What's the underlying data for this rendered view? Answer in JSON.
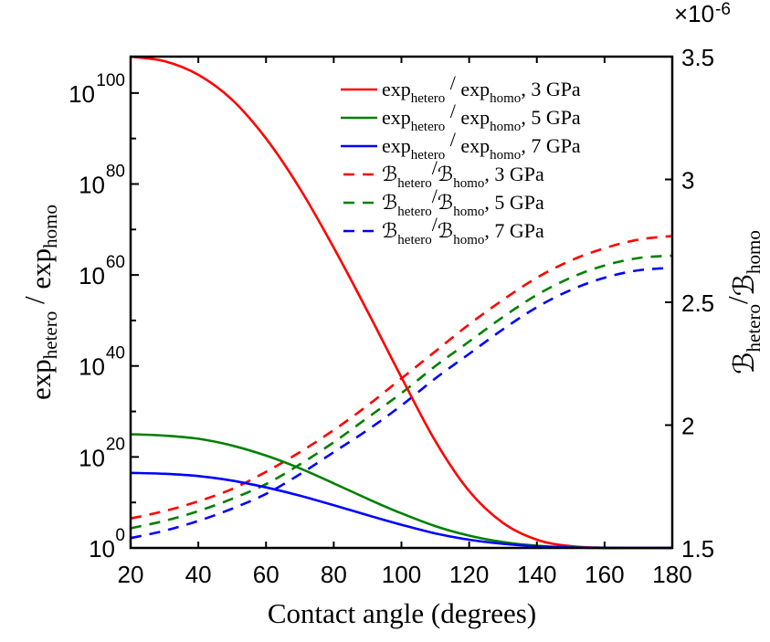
{
  "chart_data": {
    "type": "line",
    "title": "",
    "xlabel": "Contact angle (degrees)",
    "ylabel_left": {
      "main": "exp",
      "sub1": "hetero",
      "sep": " / ",
      "main2": "exp",
      "sub2": "homo"
    },
    "ylabel_right": {
      "main": "ℬ",
      "sub1": "hetero",
      "sep": "/",
      "main2": "ℬ",
      "sub2": "homo"
    },
    "xlim": [
      20,
      180
    ],
    "ylim_left_log10": [
      0,
      108
    ],
    "ylim_right": [
      1.5,
      3.5
    ],
    "right_axis_multiplier": {
      "base": "×10",
      "exp": "-6"
    },
    "x_ticks": [
      "20",
      "40",
      "60",
      "80",
      "100",
      "120",
      "140",
      "160",
      "180"
    ],
    "y_left_ticks": [
      {
        "base": "10",
        "exp": "0",
        "value_log10": 0
      },
      {
        "base": "10",
        "exp": "20",
        "value_log10": 20
      },
      {
        "base": "10",
        "exp": "40",
        "value_log10": 40
      },
      {
        "base": "10",
        "exp": "60",
        "value_log10": 60
      },
      {
        "base": "10",
        "exp": "80",
        "value_log10": 80
      },
      {
        "base": "10",
        "exp": "100",
        "value_log10": 100
      }
    ],
    "y_right_ticks": [
      "1.5",
      "2",
      "2.5",
      "3",
      "3.5"
    ],
    "grid": false,
    "legend_position": "top-right",
    "x": [
      20,
      30,
      40,
      50,
      60,
      70,
      80,
      90,
      100,
      110,
      120,
      130,
      140,
      150,
      160,
      170,
      180
    ],
    "series": [
      {
        "name": "exp_hetero / exp_homo, 3 GPa",
        "label": {
          "main": "exp",
          "sub1": "hetero",
          "sep": " / ",
          "main2": "exp",
          "sub2": "homo",
          "suffix": ", 3 GPa"
        },
        "axis": "left",
        "style": "solid",
        "color": "#ff0000",
        "values_log10": [
          108,
          107,
          104,
          98.5,
          90,
          79,
          66,
          52,
          37.5,
          23.5,
          12.5,
          5.5,
          1.8,
          0.4,
          0.05,
          0,
          0
        ]
      },
      {
        "name": "exp_hetero / exp_homo, 5 GPa",
        "label": {
          "main": "exp",
          "sub1": "hetero",
          "sep": " / ",
          "main2": "exp",
          "sub2": "homo",
          "suffix": ", 5 GPa"
        },
        "axis": "left",
        "style": "solid",
        "color": "#008000",
        "values_log10": [
          25,
          24.7,
          24,
          22.5,
          20.3,
          17.5,
          14.2,
          10.8,
          7.6,
          4.8,
          2.7,
          1.3,
          0.5,
          0.15,
          0.02,
          0,
          0
        ]
      },
      {
        "name": "exp_hetero / exp_homo, 7 GPa",
        "label": {
          "main": "exp",
          "sub1": "hetero",
          "sep": " / ",
          "main2": "exp",
          "sub2": "homo",
          "suffix": ", 7 GPa"
        },
        "axis": "left",
        "style": "solid",
        "color": "#0000ff",
        "values_log10": [
          16.5,
          16.3,
          15.8,
          14.8,
          13.3,
          11.5,
          9.4,
          7.2,
          5.1,
          3.2,
          1.8,
          0.9,
          0.35,
          0.1,
          0.02,
          0,
          0
        ]
      },
      {
        "name": "B_hetero/B_homo, 3 GPa",
        "label": {
          "main": "ℬ",
          "sub1": "hetero",
          "sep": "/",
          "main2": "ℬ",
          "sub2": "homo",
          "suffix": ", 3 GPa"
        },
        "axis": "right",
        "style": "dashed",
        "color": "#ff0000",
        "values": [
          1.62,
          1.65,
          1.69,
          1.74,
          1.81,
          1.89,
          1.98,
          2.08,
          2.19,
          2.3,
          2.41,
          2.51,
          2.6,
          2.67,
          2.72,
          2.755,
          2.77
        ]
      },
      {
        "name": "B_hetero/B_homo, 5 GPa",
        "label": {
          "main": "ℬ",
          "sub1": "hetero",
          "sep": "/",
          "main2": "ℬ",
          "sub2": "homo",
          "suffix": ", 5 GPa"
        },
        "axis": "right",
        "style": "dashed",
        "color": "#008000",
        "values": [
          1.58,
          1.61,
          1.65,
          1.7,
          1.76,
          1.84,
          1.93,
          2.03,
          2.13,
          2.24,
          2.34,
          2.44,
          2.53,
          2.6,
          2.65,
          2.68,
          2.69
        ]
      },
      {
        "name": "B_hetero/B_homo, 7 GPa",
        "label": {
          "main": "ℬ",
          "sub1": "hetero",
          "sep": "/",
          "main2": "ℬ",
          "sub2": "homo",
          "suffix": ", 7 GPa"
        },
        "axis": "right",
        "style": "dashed",
        "color": "#0000ff",
        "values": [
          1.54,
          1.57,
          1.61,
          1.66,
          1.72,
          1.8,
          1.89,
          1.98,
          2.08,
          2.19,
          2.29,
          2.39,
          2.48,
          2.55,
          2.6,
          2.63,
          2.64
        ]
      }
    ]
  }
}
